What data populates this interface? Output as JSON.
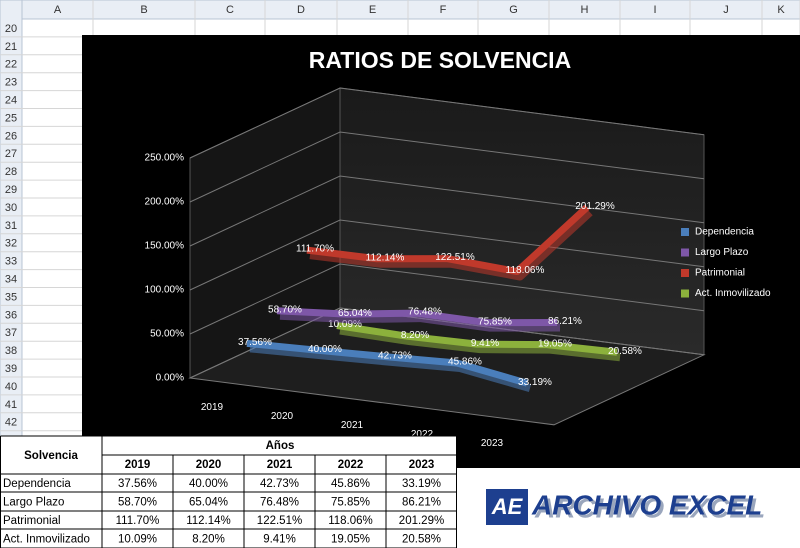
{
  "spreadsheet": {
    "columns": [
      "A",
      "B",
      "C",
      "D",
      "E",
      "F",
      "G",
      "H",
      "I",
      "J",
      "K"
    ],
    "rows": [
      20,
      21,
      22,
      23,
      24,
      25,
      26,
      27,
      28,
      29,
      30,
      31,
      32,
      33,
      34,
      35,
      36,
      37,
      38,
      39,
      40,
      41,
      42
    ]
  },
  "chart_data": {
    "type": "line3d",
    "title": "RATIOS DE SOLVENCIA",
    "categories": [
      "2019",
      "2020",
      "2021",
      "2022",
      "2023"
    ],
    "ylim": [
      0,
      250
    ],
    "yticks": [
      {
        "value": 0,
        "label": "0.00%"
      },
      {
        "value": 50,
        "label": "50.00%"
      },
      {
        "value": 100,
        "label": "100.00%"
      },
      {
        "value": 150,
        "label": "150.00%"
      },
      {
        "value": 200,
        "label": "200.00%"
      },
      {
        "value": 250,
        "label": "250.00%"
      }
    ],
    "grid": true,
    "legend": "right",
    "series": [
      {
        "name": "Dependencia",
        "color": "#4a7ebb",
        "values": [
          37.56,
          40.0,
          42.73,
          45.86,
          33.19
        ],
        "value_labels": [
          "37.56%",
          "40.00%",
          "42.73%",
          "45.86%",
          "33.19%"
        ]
      },
      {
        "name": "Largo Plazo",
        "color": "#7e57a8",
        "values": [
          58.7,
          65.04,
          76.48,
          75.85,
          86.21
        ],
        "value_labels": [
          "58.70%",
          "65.04%",
          "76.48%",
          "75.85%",
          "86.21%"
        ]
      },
      {
        "name": "Patrimonial",
        "color": "#c0392b",
        "values": [
          111.7,
          112.14,
          122.51,
          118.06,
          201.29
        ],
        "value_labels": [
          "111.70%",
          "112.14%",
          "122.51%",
          "118.06%",
          "201.29%"
        ]
      },
      {
        "name": "Act. Inmovilizado",
        "color": "#8cb13c",
        "values": [
          10.09,
          8.2,
          9.41,
          19.05,
          20.58
        ],
        "value_labels": [
          "10.09%",
          "8.20%",
          "9.41%",
          "19.05%",
          "20.58%"
        ]
      }
    ]
  },
  "table": {
    "corner": "Solvencia",
    "group": "Años",
    "header": [
      "2019",
      "2020",
      "2021",
      "2022",
      "2023"
    ],
    "rows": [
      [
        "Dependencia",
        "37.56%",
        "40.00%",
        "42.73%",
        "45.86%",
        "33.19%"
      ],
      [
        "Largo Plazo",
        "58.70%",
        "65.04%",
        "76.48%",
        "75.85%",
        "86.21%"
      ],
      [
        "Patrimonial",
        "111.70%",
        "112.14%",
        "122.51%",
        "118.06%",
        "201.29%"
      ],
      [
        "Act. Inmovilizado",
        "10.09%",
        "8.20%",
        "9.41%",
        "19.05%",
        "20.58%"
      ]
    ]
  },
  "logo": {
    "mark": "AE",
    "text": "ARCHIVO EXCEL"
  }
}
